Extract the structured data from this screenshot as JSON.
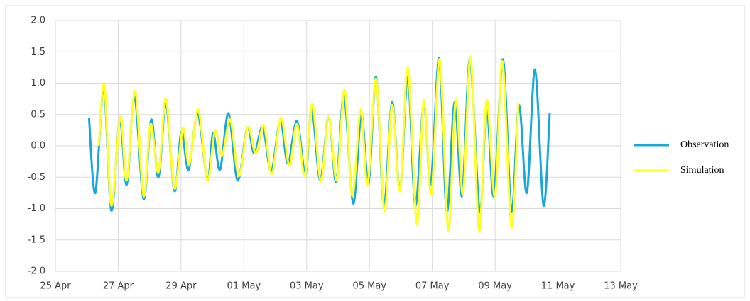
{
  "chart_data": {
    "type": "line",
    "xlim": [
      0,
      18
    ],
    "xticks": [
      {
        "value": 0,
        "label": "25 Apr"
      },
      {
        "value": 2,
        "label": "27 Apr"
      },
      {
        "value": 4,
        "label": "29 Apr"
      },
      {
        "value": 6,
        "label": "01 May"
      },
      {
        "value": 8,
        "label": "03 May"
      },
      {
        "value": 10,
        "label": "05 May"
      },
      {
        "value": 12,
        "label": "07 May"
      },
      {
        "value": 14,
        "label": "09 May"
      },
      {
        "value": 16,
        "label": "11 May"
      },
      {
        "value": 18,
        "label": "13 May"
      }
    ],
    "ylim": [
      -2,
      2
    ],
    "yticks": [
      {
        "value": -2,
        "label": "-2.0"
      },
      {
        "value": -1.5,
        "label": "-1.5"
      },
      {
        "value": -1,
        "label": "-1.0"
      },
      {
        "value": -0.5,
        "label": "-0.5"
      },
      {
        "value": 0,
        "label": "0.0"
      },
      {
        "value": 0.5,
        "label": "0.5"
      },
      {
        "value": 1,
        "label": "1.0"
      },
      {
        "value": 1.5,
        "label": "1.5"
      },
      {
        "value": 2,
        "label": "2.0"
      }
    ],
    "grid": true,
    "legend": "right",
    "series": [
      {
        "name": "Observation",
        "color": "#1aa7dc",
        "x": [
          1.07,
          1.27,
          1.54,
          1.78,
          2.05,
          2.27,
          2.52,
          2.81,
          3.05,
          3.28,
          3.52,
          3.79,
          4.01,
          4.24,
          4.53,
          4.84,
          5.02,
          5.24,
          5.51,
          5.8,
          6.11,
          6.33,
          6.6,
          6.87,
          7.16,
          7.4,
          7.69,
          7.96,
          8.16,
          8.43,
          8.7,
          8.94,
          9.19,
          9.48,
          9.74,
          9.97,
          10.21,
          10.46,
          10.72,
          10.97,
          11.22,
          11.46,
          11.73,
          11.95,
          12.22,
          12.46,
          12.71,
          12.95,
          13.2,
          13.51,
          13.73,
          13.96,
          14.25,
          14.52,
          14.76,
          15.01,
          15.27,
          15.54,
          15.74
        ],
        "values": [
          0.45,
          -0.75,
          0.92,
          -1.03,
          0.4,
          -0.62,
          0.78,
          -0.85,
          0.42,
          -0.5,
          0.67,
          -0.72,
          0.22,
          -0.38,
          0.52,
          -0.55,
          0.2,
          -0.38,
          0.52,
          -0.55,
          0.28,
          -0.12,
          0.3,
          -0.4,
          0.4,
          -0.28,
          0.4,
          -0.45,
          0.6,
          -0.55,
          0.48,
          -0.58,
          0.8,
          -0.92,
          0.5,
          -0.6,
          1.1,
          -0.95,
          0.7,
          -0.7,
          1.1,
          -0.95,
          0.68,
          -0.62,
          1.4,
          -1.05,
          0.7,
          -0.8,
          1.38,
          -1.05,
          0.62,
          -0.8,
          1.38,
          -1.05,
          0.65,
          -0.75,
          1.22,
          -0.95,
          0.53
        ]
      },
      {
        "name": "Simulation",
        "color": "#ffff26",
        "x": [
          1.38,
          1.56,
          1.78,
          2.07,
          2.27,
          2.54,
          2.81,
          3.03,
          3.28,
          3.52,
          3.79,
          4.06,
          4.26,
          4.55,
          4.84,
          5.08,
          5.31,
          5.57,
          5.84,
          6.13,
          6.38,
          6.64,
          6.89,
          7.18,
          7.45,
          7.69,
          7.94,
          8.18,
          8.45,
          8.7,
          8.96,
          9.21,
          9.45,
          9.72,
          9.94,
          10.21,
          10.48,
          10.72,
          10.97,
          11.22,
          11.51,
          11.73,
          11.97,
          12.24,
          12.51,
          12.75,
          12.98,
          13.22,
          13.49,
          13.73,
          14.0,
          14.23,
          14.52,
          14.74
        ],
        "values": [
          0,
          0.98,
          -0.95,
          0.47,
          -0.55,
          0.88,
          -0.8,
          0.35,
          -0.42,
          0.75,
          -0.68,
          0.28,
          -0.3,
          0.58,
          -0.55,
          0.23,
          -0.15,
          0.42,
          -0.48,
          0.3,
          -0.12,
          0.33,
          -0.45,
          0.45,
          -0.32,
          0.35,
          -0.48,
          0.67,
          -0.57,
          0.48,
          -0.55,
          0.9,
          -0.8,
          0.58,
          -0.62,
          1.07,
          -1.05,
          0.65,
          -0.72,
          1.25,
          -1.25,
          0.73,
          -0.78,
          1.38,
          -1.35,
          0.75,
          -0.78,
          1.42,
          -1.35,
          0.73,
          -0.82,
          1.35,
          -1.3,
          0.68
        ]
      }
    ]
  }
}
